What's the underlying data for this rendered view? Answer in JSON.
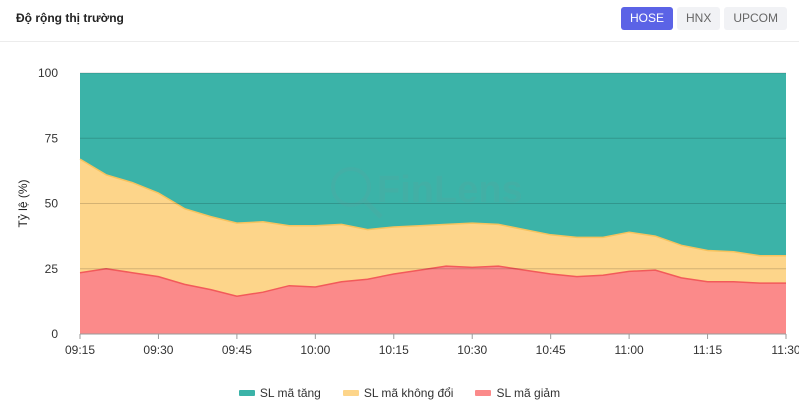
{
  "header": {
    "title": "Độ rộng thị trường",
    "exchanges": [
      "HOSE",
      "HNX",
      "UPCOM"
    ],
    "active_exchange": "HOSE"
  },
  "watermark": "FinLens",
  "colors": {
    "up": "#3bb3a8",
    "unchanged": "#fdd58a",
    "down": "#fb8a8a",
    "up_line": "#2fa397",
    "unchanged_line": "#f7c35e",
    "down_line": "#f25a5a",
    "active_button": "#5b63e6"
  },
  "chart_data": {
    "type": "area",
    "stacked": true,
    "ylabel": "Tỷ lệ (%)",
    "xlabel": "",
    "ylim": [
      0,
      100
    ],
    "yticks": [
      0,
      25,
      50,
      75,
      100
    ],
    "xticks": [
      "09:15",
      "09:30",
      "09:45",
      "10:00",
      "10:15",
      "10:30",
      "10:45",
      "11:00",
      "11:15",
      "11:30"
    ],
    "x": [
      "09:15",
      "09:20",
      "09:25",
      "09:30",
      "09:35",
      "09:40",
      "09:45",
      "09:50",
      "09:55",
      "10:00",
      "10:05",
      "10:10",
      "10:15",
      "10:20",
      "10:25",
      "10:30",
      "10:35",
      "10:40",
      "10:45",
      "10:50",
      "10:55",
      "11:00",
      "11:05",
      "11:10",
      "11:15",
      "11:20",
      "11:25",
      "11:30"
    ],
    "grid": true,
    "legend_position": "bottom",
    "series": [
      {
        "name": "SL mã giảm",
        "color_key": "down",
        "values": [
          23.5,
          25,
          23.5,
          22,
          19,
          17,
          14.5,
          16,
          18.5,
          18,
          20,
          21,
          23,
          24.5,
          26,
          25.5,
          26,
          24.5,
          23,
          22,
          22.5,
          24,
          24.5,
          21.5,
          20,
          20,
          19.5,
          19.5
        ]
      },
      {
        "name": "SL mã không đổi",
        "color_key": "unchanged",
        "values": [
          43.5,
          36,
          34.5,
          32,
          29,
          28,
          28,
          27,
          23,
          23.5,
          22,
          19,
          18,
          17,
          16,
          17,
          16,
          15.5,
          15,
          15,
          14.5,
          15,
          13,
          12.5,
          12,
          11.5,
          10.5,
          10.5
        ]
      },
      {
        "name": "SL mã tăng",
        "color_key": "up",
        "values": [
          33,
          39,
          42,
          46,
          52,
          55,
          57.5,
          57,
          58.5,
          58.5,
          58,
          60,
          59,
          58.5,
          58,
          57.5,
          58,
          60,
          62,
          63,
          63,
          61,
          62.5,
          66,
          68,
          68.5,
          70,
          70
        ]
      }
    ]
  }
}
